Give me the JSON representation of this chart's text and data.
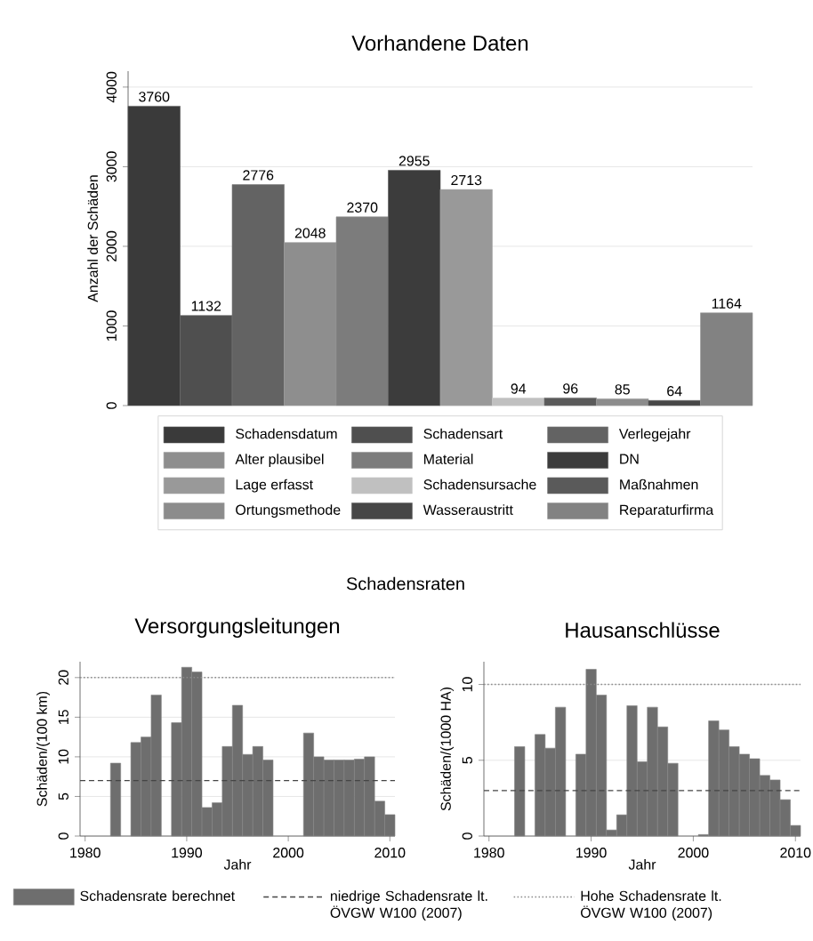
{
  "chart_data": [
    {
      "type": "bar",
      "title": "Vorhandene Daten",
      "ylabel": "Anzahl der Schäden",
      "categories": [
        null
      ],
      "ylim": [
        0,
        4200
      ],
      "yticks": [
        0,
        1000,
        2000,
        3000,
        4000
      ],
      "grid": "y",
      "legend": "bottom",
      "data_labels": true,
      "series": [
        {
          "name": "Schadensdatum",
          "color": "#3a3a3a",
          "values": [
            3760
          ]
        },
        {
          "name": "Schadensart",
          "color": "#4f4f4f",
          "values": [
            1132
          ]
        },
        {
          "name": "Verlegejahr",
          "color": "#636363",
          "values": [
            2776
          ]
        },
        {
          "name": "Alter plausibel",
          "color": "#8e8e8e",
          "values": [
            2048
          ]
        },
        {
          "name": "Material",
          "color": "#7c7c7c",
          "values": [
            2370
          ]
        },
        {
          "name": "DN",
          "color": "#3c3c3c",
          "values": [
            2955
          ]
        },
        {
          "name": "Lage erfasst",
          "color": "#999999",
          "values": [
            2713
          ]
        },
        {
          "name": "Schadensursache",
          "color": "#c0c0c0",
          "values": [
            94
          ]
        },
        {
          "name": "Maßnahmen",
          "color": "#5a5a5a",
          "values": [
            96
          ]
        },
        {
          "name": "Ortungsmethode",
          "color": "#8c8c8c",
          "values": [
            85
          ]
        },
        {
          "name": "Wasseraustritt",
          "color": "#474747",
          "values": [
            64
          ]
        },
        {
          "name": "Reparaturfirma",
          "color": "#828282",
          "values": [
            1164
          ]
        }
      ]
    },
    {
      "type": "bar",
      "title": "Schadensraten",
      "subtitle": "Versorgungsleitungen",
      "xlabel": "Jahr",
      "ylabel": "Schäden/(100 km)",
      "xlim": [
        1979.5,
        2010.5
      ],
      "xticks": [
        1980,
        1990,
        2000,
        2010
      ],
      "ylim": [
        0,
        22
      ],
      "yticks": [
        0,
        5,
        10,
        15,
        20
      ],
      "grid": "y",
      "legend": "bottom",
      "x": [
        1983,
        1984,
        1985,
        1986,
        1987,
        1988,
        1989,
        1990,
        1991,
        1992,
        1993,
        1994,
        1995,
        1996,
        1997,
        1998,
        1999,
        2000,
        2001,
        2002,
        2003,
        2004,
        2005,
        2006,
        2007,
        2008,
        2009,
        2010
      ],
      "series": [
        {
          "name": "Schadensrate berechnet",
          "color": "#6e6e6e",
          "values": [
            9.2,
            null,
            11.8,
            12.5,
            17.8,
            null,
            14.3,
            21.3,
            20.7,
            3.6,
            4.2,
            11.3,
            16.5,
            10.3,
            11.3,
            9.6,
            null,
            null,
            null,
            13,
            10,
            9.6,
            9.6,
            9.6,
            9.7,
            10,
            4.4,
            2.7
          ]
        }
      ],
      "ref_lines": [
        {
          "axis": "y",
          "value": 7,
          "label": "niedrige Schadensrate lt. ÖVGW W100 (2007)",
          "color": "#454545",
          "line_style": "dashed"
        },
        {
          "axis": "y",
          "value": 20,
          "label": "Hohe Schadensrate lt. ÖVGW W100 (2007)",
          "color": "#8a8a8a",
          "line_style": "dotted"
        }
      ]
    },
    {
      "type": "bar",
      "title": "Hausanschlüsse",
      "xlabel": "Jahr",
      "ylabel": "Schäden/(1000 HA)",
      "xlim": [
        1979.5,
        2010.5
      ],
      "xticks": [
        1980,
        1990,
        2000,
        2010
      ],
      "ylim": [
        0,
        11.5
      ],
      "yticks": [
        0,
        5,
        10
      ],
      "grid": "y",
      "x": [
        1983,
        1984,
        1985,
        1986,
        1987,
        1988,
        1989,
        1990,
        1991,
        1992,
        1993,
        1994,
        1995,
        1996,
        1997,
        1998,
        1999,
        2000,
        2001,
        2002,
        2003,
        2004,
        2005,
        2006,
        2007,
        2008,
        2009,
        2010
      ],
      "series": [
        {
          "color": "#6e6e6e",
          "values": [
            5.9,
            null,
            6.7,
            5.8,
            8.5,
            null,
            5.4,
            11,
            9.3,
            0.4,
            1.4,
            8.6,
            4.9,
            8.5,
            7.2,
            4.8,
            null,
            null,
            0.1,
            7.6,
            7.0,
            5.9,
            5.4,
            5.1,
            4.0,
            3.7,
            2.4,
            0.7
          ]
        }
      ],
      "ref_lines": [
        {
          "axis": "y",
          "value": 3,
          "color": "#454545",
          "line_style": "dashed"
        },
        {
          "axis": "y",
          "value": 10,
          "color": "#8a8a8a",
          "line_style": "dotted"
        }
      ]
    }
  ]
}
